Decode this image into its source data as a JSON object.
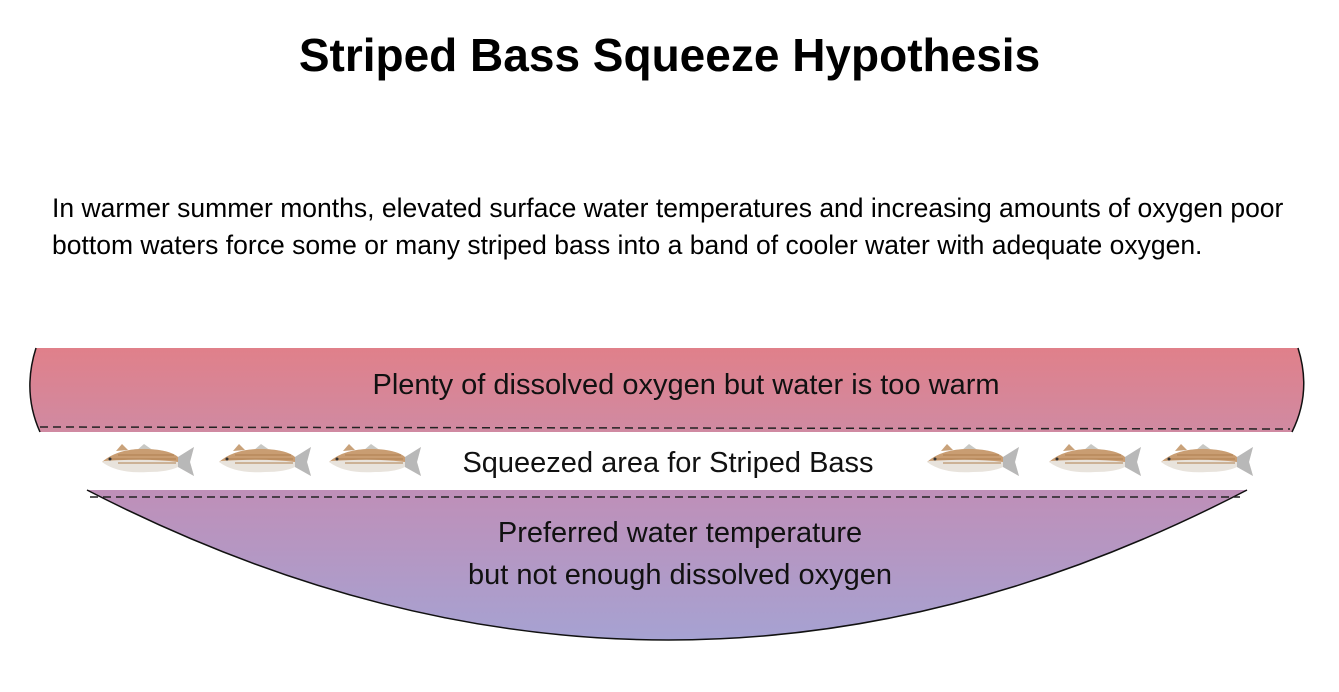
{
  "title": "Striped Bass Squeeze Hypothesis",
  "intro": "In warmer summer months, elevated surface water temperatures and increasing amounts of oxygen poor bottom waters force some or many striped bass into a band of cooler water with adequate oxygen.",
  "layers": {
    "top": {
      "label": "Plenty of dissolved oxygen but water is too warm",
      "color_top": "#e0808a",
      "color_bottom": "#d08aa2"
    },
    "middle": {
      "label": "Squeezed area for Striped Bass",
      "fish_count": 6,
      "fish_icon": "striped-bass-icon"
    },
    "bottom": {
      "line1": "Preferred water temperature",
      "line2": "but not enough dissolved oxygen",
      "color_top": "#bf8fb8",
      "color_bottom": "#a6a2d2"
    }
  }
}
